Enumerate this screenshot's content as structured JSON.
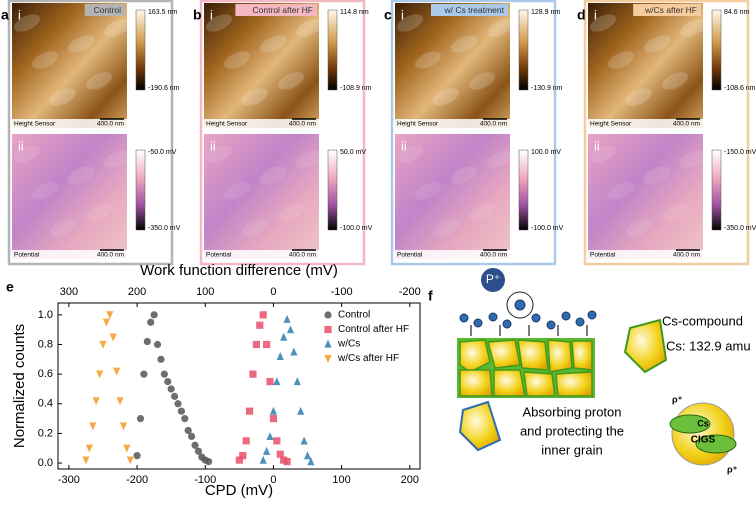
{
  "panels": [
    {
      "letter": "a",
      "label": "Control",
      "height_tag": "i",
      "height_max": "163.5 nm",
      "height_min": "-190.6 nm",
      "height_caption": "Height Sensor",
      "height_scale": "400.0 nm",
      "potential_tag": "ii",
      "potential_max": "-50.0 mV",
      "potential_min": "-350.0 mV",
      "potential_caption": "Potential",
      "potential_scale": "400.0 nm",
      "color": "#b4b4b4"
    },
    {
      "letter": "b",
      "label": "Control after HF",
      "height_tag": "i",
      "height_max": "114.8 nm",
      "height_min": "-108.9 nm",
      "height_caption": "Height Sensor",
      "height_scale": "400.0 nm",
      "potential_tag": "ii",
      "potential_max": "50.0 mV",
      "potential_min": "-100.0 mV",
      "potential_caption": "Potential",
      "potential_scale": "400.0 nm",
      "color": "#f4b8c3"
    },
    {
      "letter": "c",
      "label": "w/ Cs treatment",
      "height_tag": "i",
      "height_max": "128.9 nm",
      "height_min": "-130.9 nm",
      "height_caption": "Height Sensor",
      "height_scale": "400.0 nm",
      "potential_tag": "ii",
      "potential_max": "100.0 mV",
      "potential_min": "-100.0 mV",
      "potential_caption": "Potential",
      "potential_scale": "400.0 nm",
      "color": "#abc9e9"
    },
    {
      "letter": "d",
      "label": "w/Cs after HF",
      "height_tag": "i",
      "height_max": "84.6 nm",
      "height_min": "-108.6 nm",
      "height_caption": "Height Sensor",
      "height_scale": "400.0 nm",
      "potential_tag": "ii",
      "potential_max": "-150.0 mV",
      "potential_min": "-350.0 mV",
      "potential_caption": "Potential",
      "potential_scale": "400.0 nm",
      "color": "#f6cc9f"
    }
  ],
  "chart_data": {
    "type": "scatter",
    "letter": "e",
    "xlabel": "CPD (mV)",
    "ylabel": "Normalized counts",
    "x2label": "Work function difference (mV)",
    "xlim": [
      -316,
      215
    ],
    "xticks": [
      -300,
      -200,
      -100,
      0,
      100,
      200
    ],
    "x2lim": [
      316,
      -215
    ],
    "x2ticks": [
      300,
      200,
      100,
      0,
      -100,
      -200
    ],
    "ylim": [
      -0.04,
      1.08
    ],
    "yticks": [
      {
        "value": 0,
        "label": "0.0"
      },
      {
        "value": 0.2,
        "label": "0.2"
      },
      {
        "value": 0.4,
        "label": "0.4"
      },
      {
        "value": 0.6,
        "label": "0.6"
      },
      {
        "value": 0.8,
        "label": "0.8"
      },
      {
        "value": 1,
        "label": "1.0"
      }
    ],
    "legend": "upper right",
    "series": [
      {
        "name": "Control",
        "color": "#555555",
        "marker": "circle",
        "x": [
          -200,
          -195,
          -190,
          -185,
          -180,
          -175,
          -170,
          -165,
          -160,
          -155,
          -150,
          -145,
          -140,
          -135,
          -130,
          -125,
          -120,
          -115,
          -110,
          -105,
          -100,
          -95
        ],
        "values": [
          0.05,
          0.3,
          0.6,
          0.82,
          0.95,
          1.0,
          0.8,
          0.7,
          0.6,
          0.55,
          0.5,
          0.45,
          0.4,
          0.35,
          0.3,
          0.22,
          0.18,
          0.12,
          0.08,
          0.04,
          0.02,
          0.01
        ]
      },
      {
        "name": "Control after HF",
        "color": "#e8506a",
        "marker": "square",
        "x": [
          -50,
          -45,
          -40,
          -35,
          -30,
          -25,
          -20,
          -15,
          -10,
          -5,
          0,
          5,
          10,
          15,
          20
        ],
        "values": [
          0.02,
          0.05,
          0.15,
          0.35,
          0.6,
          0.8,
          0.93,
          1.0,
          0.8,
          0.55,
          0.3,
          0.15,
          0.06,
          0.02,
          0.01
        ]
      },
      {
        "name": "w/Cs",
        "color": "#2d7fae",
        "marker": "triangle-up",
        "x": [
          -15,
          -10,
          -5,
          0,
          5,
          10,
          15,
          20,
          25,
          30,
          35,
          40,
          45,
          50,
          55
        ],
        "values": [
          0.02,
          0.08,
          0.18,
          0.35,
          0.55,
          0.72,
          0.85,
          0.97,
          0.9,
          0.75,
          0.55,
          0.35,
          0.15,
          0.05,
          0.01
        ]
      },
      {
        "name": "w/Cs after HF",
        "color": "#f59a23",
        "marker": "triangle-down",
        "x": [
          -275,
          -270,
          -265,
          -260,
          -255,
          -250,
          -245,
          -240,
          -235,
          -230,
          -225,
          -220,
          -215,
          -210
        ],
        "values": [
          0.02,
          0.1,
          0.25,
          0.42,
          0.6,
          0.8,
          0.95,
          1.0,
          0.85,
          0.62,
          0.42,
          0.25,
          0.1,
          0.02
        ]
      }
    ]
  },
  "diagram": {
    "letter": "f",
    "proton": "P⁺",
    "compound": "Cs-compound",
    "mass": "Cs: 132.9 amu",
    "text": [
      "Absorbing proton",
      "and protecting the",
      "inner grain"
    ],
    "cs": "Cs",
    "cigs": "CIGS",
    "rho": [
      "ρ⁺",
      "ρ⁺"
    ]
  }
}
